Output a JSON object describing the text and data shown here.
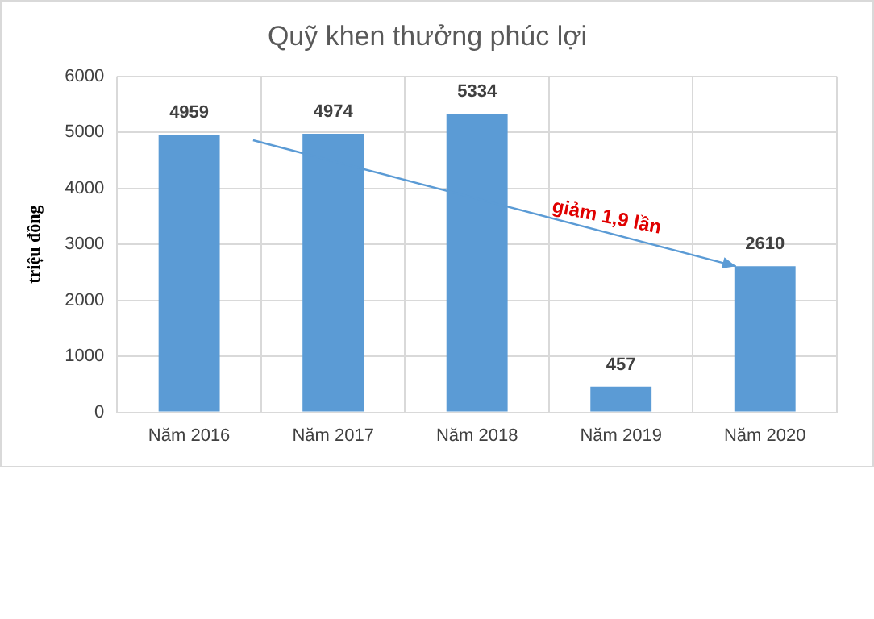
{
  "chart_data": {
    "type": "bar",
    "title": "Quỹ khen thưởng phúc lợi",
    "ylabel": "triệu đồng",
    "categories": [
      "Năm 2016",
      "Năm 2017",
      "Năm 2018",
      "Năm 2019",
      "Năm 2020"
    ],
    "values": [
      4959,
      4974,
      5334,
      457,
      2610
    ],
    "color": "#5b9bd5",
    "ylim": [
      0,
      6000
    ],
    "yticks": [
      0,
      1000,
      2000,
      3000,
      4000,
      5000,
      6000
    ],
    "grid": true,
    "data_labels": true,
    "annotations": [
      "giảm 1,9 lần"
    ]
  }
}
